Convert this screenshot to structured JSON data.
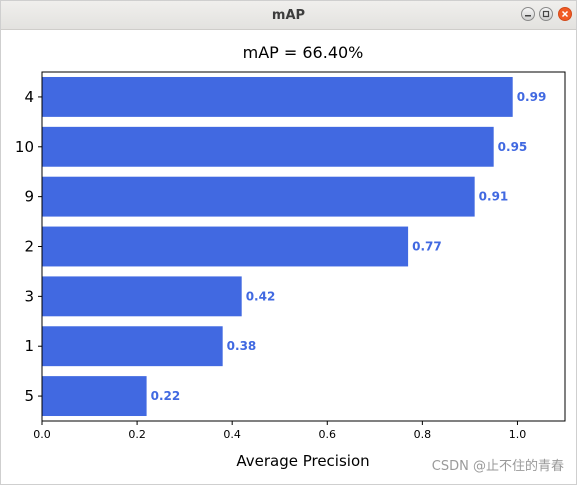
{
  "window": {
    "title": "mAP"
  },
  "icons": {
    "minimize": "minimize-icon",
    "maximize": "maximize-icon",
    "close": "close-icon"
  },
  "colors": {
    "bar": "#4169e1",
    "label": "#4169e1",
    "close_button": "#f15a24"
  },
  "watermark": "CSDN @止不住的青春",
  "chart_data": {
    "type": "bar",
    "orientation": "horizontal",
    "title": "mAP = 66.40%",
    "xlabel": "Average Precision",
    "ylabel": "",
    "categories": [
      "5",
      "1",
      "3",
      "2",
      "9",
      "10",
      "4"
    ],
    "values": [
      0.22,
      0.38,
      0.42,
      0.77,
      0.91,
      0.95,
      0.99
    ],
    "data_labels": [
      "0.22",
      "0.38",
      "0.42",
      "0.77",
      "0.91",
      "0.95",
      "0.99"
    ],
    "xlim": [
      0,
      1.1
    ],
    "xticks": [
      0.0,
      0.2,
      0.4,
      0.6,
      0.8,
      1.0
    ],
    "xtick_labels": [
      "0.0",
      "0.2",
      "0.4",
      "0.6",
      "0.8",
      "1.0"
    ],
    "grid": false,
    "legend": "none"
  }
}
